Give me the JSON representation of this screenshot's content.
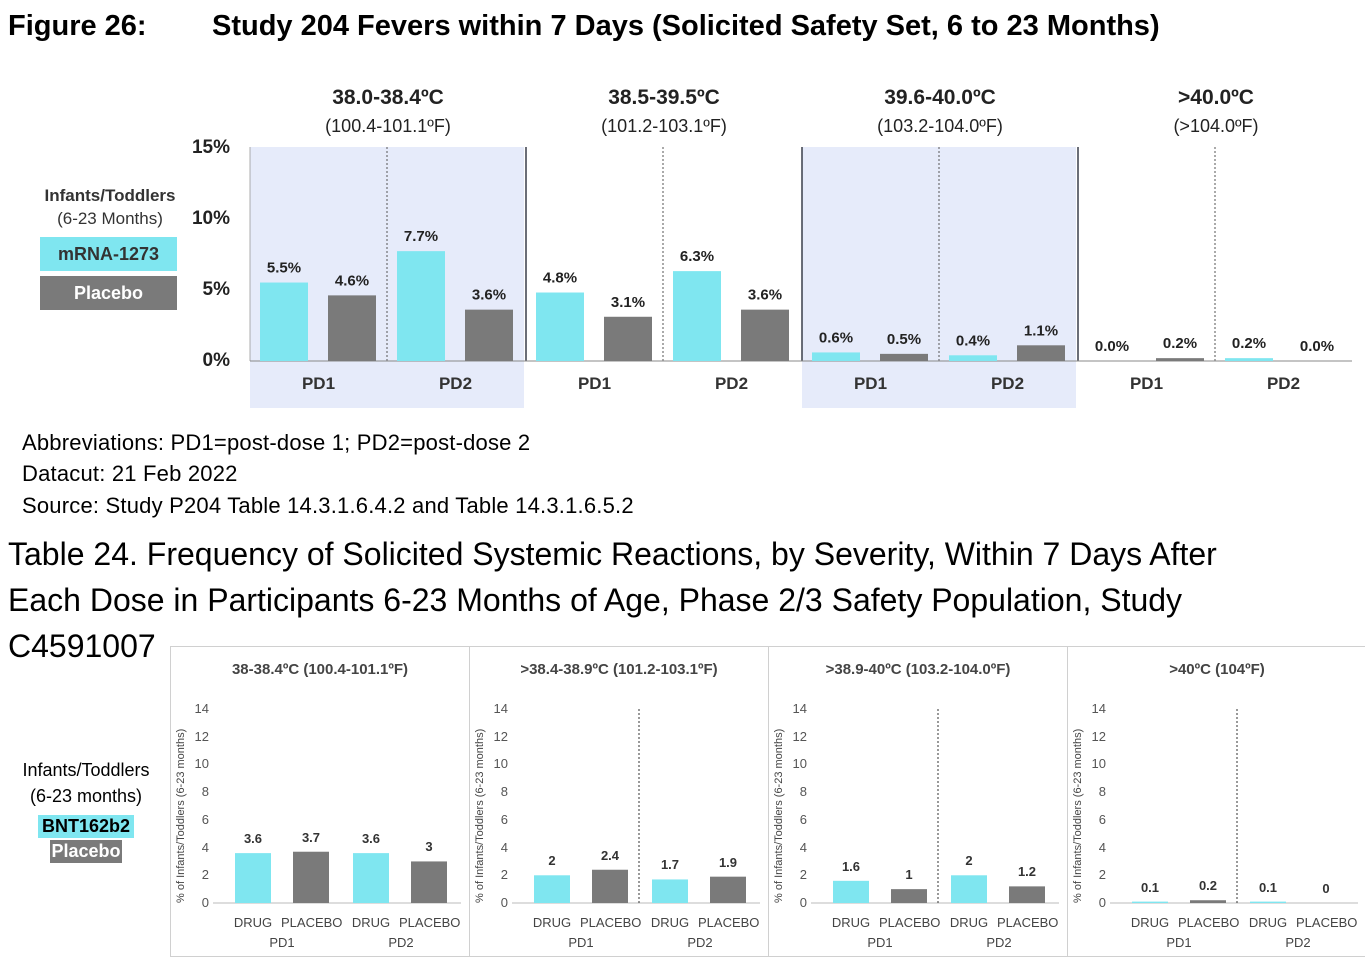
{
  "figure": {
    "label": "Figure 26:",
    "title": "Study 204 Fevers within 7 Days (Solicited Safety Set, 6 to 23 Months)",
    "legend": {
      "title": "Infants/Toddlers",
      "subtitle": "(6-23 Months)",
      "items": [
        {
          "label": "mRNA-1273",
          "color": "#7fe6f0"
        },
        {
          "label": "Placebo",
          "color": "#7a7a7a"
        }
      ]
    },
    "colors": {
      "drug": "#7fe6f0",
      "placebo": "#7a7a7a",
      "shade": "#e6ebfa"
    },
    "notes": {
      "abbreviations": "Abbreviations: PD1=post-dose 1; PD2=post-dose 2",
      "datacut": "Datacut:  21 Feb 2022",
      "source": "Source: Study P204  Table 14.3.1.6.4.2  and Table 14.3.1.6.5.2"
    }
  },
  "table": {
    "title_lines": [
      "Table 24. Frequency of Solicited Systemic Reactions, by Severity, Within 7 Days After",
      "Each Dose in Participants 6-23 Months of Age, Phase 2/3 Safety Population, Study",
      "C4591007"
    ],
    "legend": {
      "title": "Infants/Toddlers",
      "subtitle": "(6-23 months)",
      "items": [
        {
          "label": "BNT162b2",
          "color": "#7fe6f0"
        },
        {
          "label": "Placebo",
          "color": "#7a7a7a"
        }
      ]
    }
  },
  "chart_data": [
    {
      "type": "bar",
      "title": "",
      "ylim": [
        0,
        15
      ],
      "yticks": [
        "0%",
        "5%",
        "10%",
        "15%"
      ],
      "groups": [
        {
          "label": "38.0-38.4ºC",
          "sublabel": "(100.4-101.1ºF)",
          "shaded": true,
          "categories": [
            "PD1",
            "PD2"
          ]
        },
        {
          "label": "38.5-39.5ºC",
          "sublabel": "(101.2-103.1ºF)",
          "shaded": false,
          "categories": [
            "PD1",
            "PD2"
          ]
        },
        {
          "label": "39.6-40.0ºC",
          "sublabel": "(103.2-104.0ºF)",
          "shaded": true,
          "categories": [
            "PD1",
            "PD2"
          ]
        },
        {
          "label": ">40.0ºC",
          "sublabel": "(>104.0ºF)",
          "shaded": false,
          "categories": [
            "PD1",
            "PD2"
          ]
        }
      ],
      "series": [
        {
          "name": "mRNA-1273",
          "values": [
            5.5,
            7.7,
            4.8,
            6.3,
            0.6,
            0.4,
            0.0,
            0.2
          ],
          "labels": [
            "5.5%",
            "7.7%",
            "4.8%",
            "6.3%",
            "0.6%",
            "0.4%",
            "0.0%",
            "0.2%"
          ]
        },
        {
          "name": "Placebo",
          "values": [
            4.6,
            3.6,
            3.1,
            3.6,
            0.5,
            1.1,
            0.2,
            0.0
          ],
          "labels": [
            "4.6%",
            "3.6%",
            "3.1%",
            "3.6%",
            "0.5%",
            "1.1%",
            "0.2%",
            "0.0%"
          ]
        }
      ]
    },
    {
      "type": "bar",
      "panels": [
        {
          "title": "38-38.4ºC (100.4-101.1ºF)",
          "values": [
            3.6,
            3.7,
            3.6,
            3
          ],
          "labels": [
            "3.6",
            "3.7",
            "3.6",
            "3"
          ],
          "divider": false
        },
        {
          "title": ">38.4-38.9ºC (101.2-103.1ºF)",
          "values": [
            2,
            2.4,
            1.7,
            1.9
          ],
          "labels": [
            "2",
            "2.4",
            "1.7",
            "1.9"
          ],
          "divider": true
        },
        {
          "title": ">38.9-40ºC (103.2-104.0ºF)",
          "values": [
            1.6,
            1,
            2,
            1.2
          ],
          "labels": [
            "1.6",
            "1",
            "2",
            "1.2"
          ],
          "divider": true
        },
        {
          "title": ">40ºC (104ºF)",
          "values": [
            0.1,
            0.2,
            0.1,
            0
          ],
          "labels": [
            "0.1",
            "0.2",
            "0.1",
            "0"
          ],
          "divider": true
        }
      ],
      "categories": [
        "DRUG",
        "PLACEBO",
        "DRUG",
        "PLACEBO"
      ],
      "dose_labels": [
        "PD1",
        "PD2"
      ],
      "ylabel": "% of Infants/Toddlers (6-23 months)",
      "ylim": [
        0,
        14
      ],
      "yticks": [
        "0",
        "2",
        "4",
        "6",
        "8",
        "10",
        "12",
        "14"
      ]
    }
  ]
}
